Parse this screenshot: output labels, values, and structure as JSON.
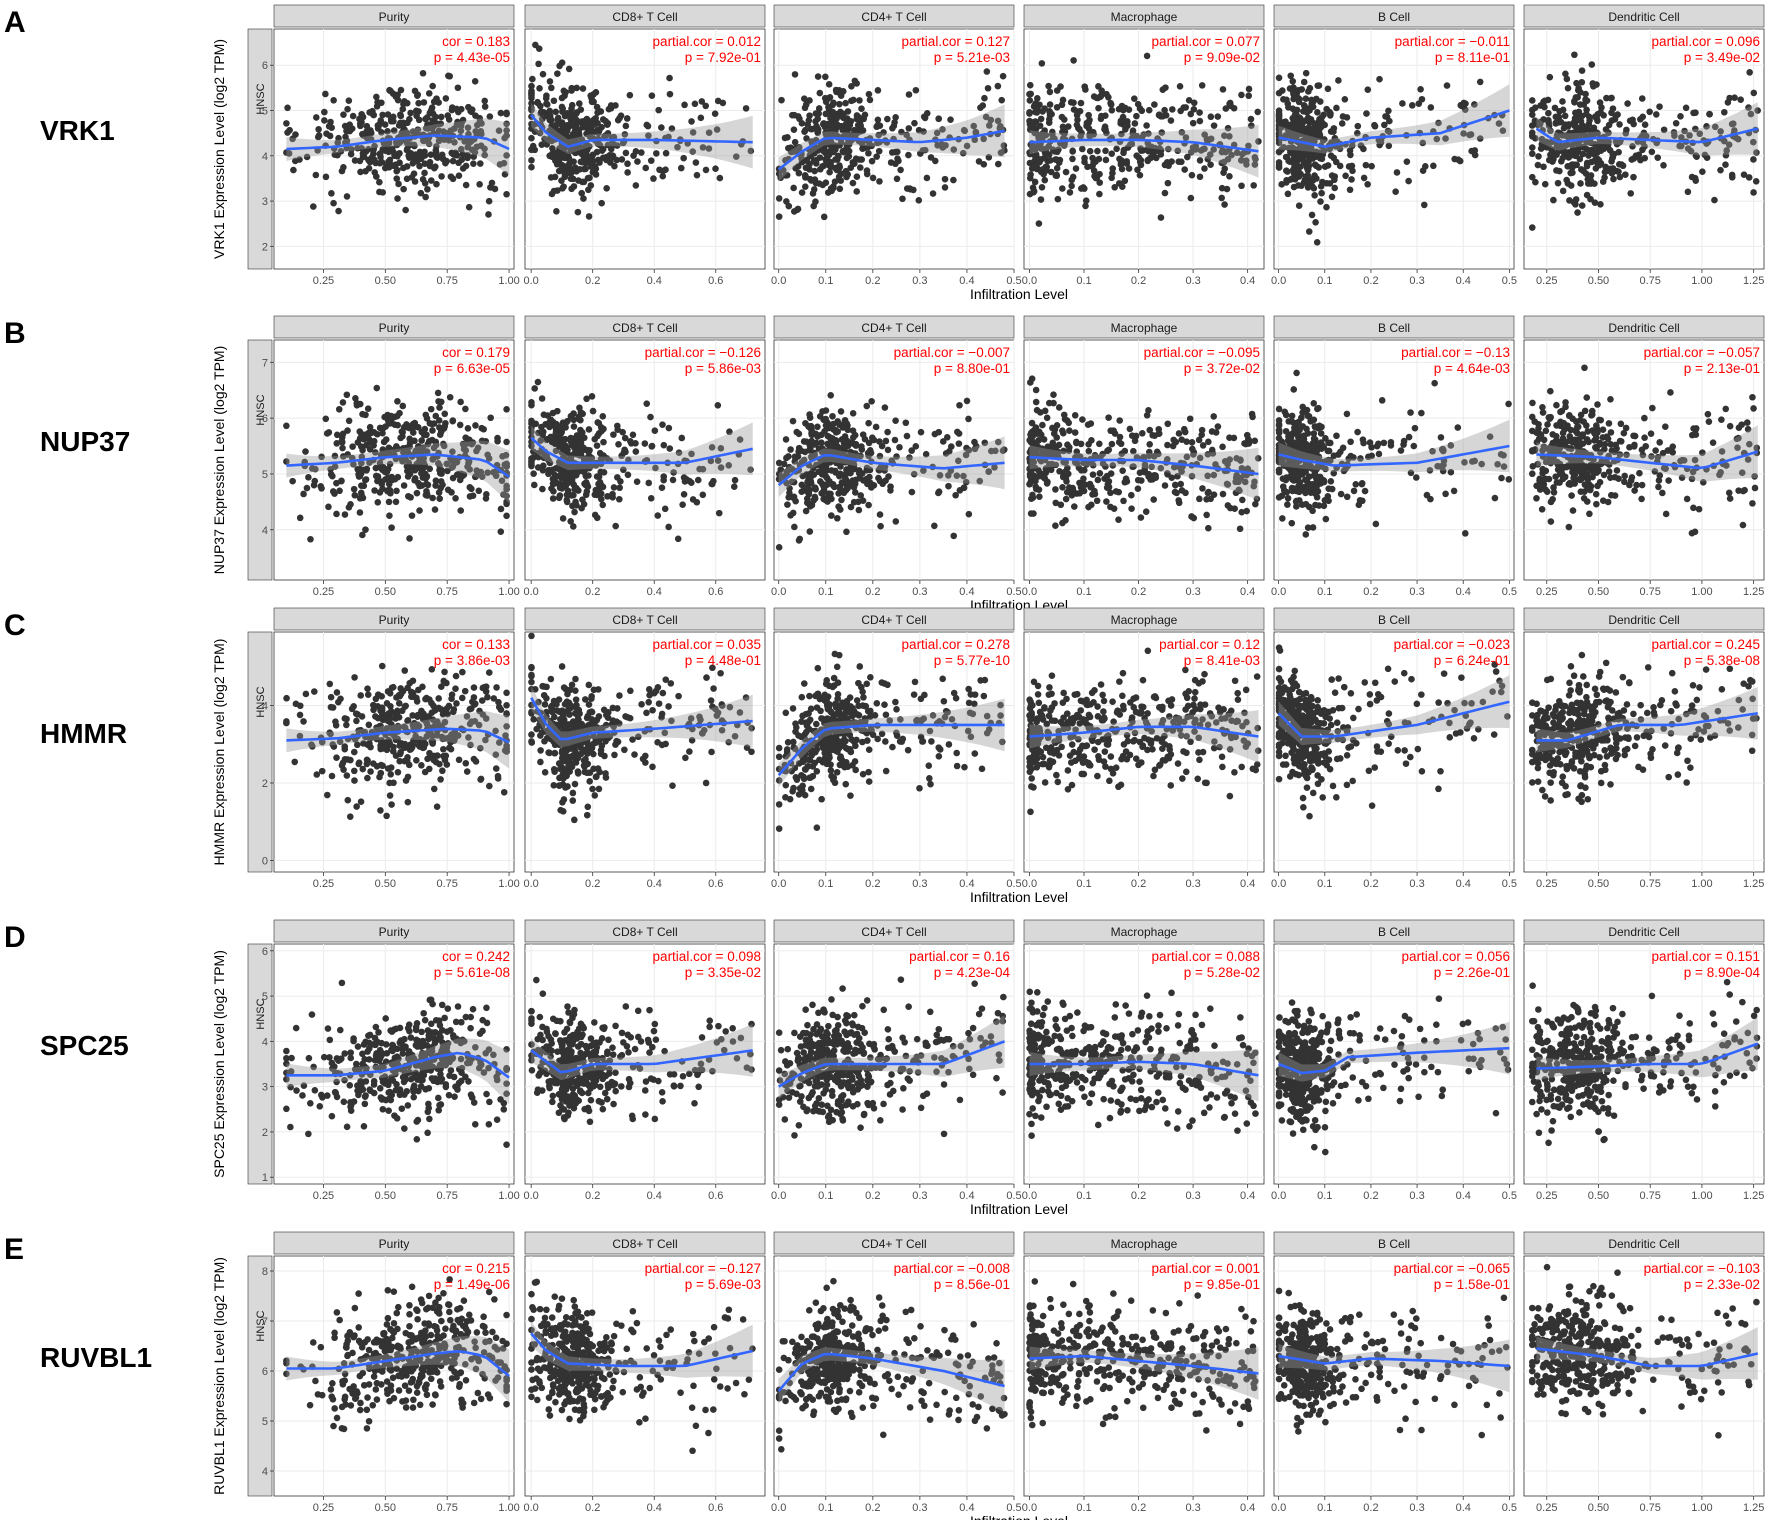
{
  "figure": {
    "rows": [
      {
        "letter": "A",
        "gene": "VRK1",
        "ylabel": "VRK1 Expression Level (log2 TPM)",
        "cancer": "HNSC",
        "xlabel": "Infiltration Level",
        "ylim": [
          1.5,
          6.8
        ],
        "yticks": [
          2,
          3,
          4,
          5,
          6
        ],
        "panels": [
          {
            "name": "Purity",
            "stat1": "cor = 0.183",
            "stat2": "p = 4.43e-05"
          },
          {
            "name": "CD8+ T Cell",
            "stat1": "partial.cor = 0.012",
            "stat2": "p = 7.92e-01"
          },
          {
            "name": "CD4+ T Cell",
            "stat1": "partial.cor = 0.127",
            "stat2": "p = 5.21e-03"
          },
          {
            "name": "Macrophage",
            "stat1": "partial.cor = 0.077",
            "stat2": "p = 9.09e-02"
          },
          {
            "name": "B Cell",
            "stat1": "partial.cor = −0.011",
            "stat2": "p = 8.11e-01"
          },
          {
            "name": "Dendritic Cell",
            "stat1": "partial.cor = 0.096",
            "stat2": "p = 3.49e-02"
          }
        ]
      },
      {
        "letter": "B",
        "gene": "NUP37",
        "ylabel": "NUP37 Expression Level (log2 TPM)",
        "cancer": "HNSC",
        "xlabel": "Infiltration Level",
        "ylim": [
          3.1,
          7.4
        ],
        "yticks": [
          4,
          5,
          6,
          7
        ],
        "panels": [
          {
            "name": "Purity",
            "stat1": "cor = 0.179",
            "stat2": "p = 6.63e-05"
          },
          {
            "name": "CD8+ T Cell",
            "stat1": "partial.cor = −0.126",
            "stat2": "p = 5.86e-03"
          },
          {
            "name": "CD4+ T Cell",
            "stat1": "partial.cor = −0.007",
            "stat2": "p = 8.80e-01"
          },
          {
            "name": "Macrophage",
            "stat1": "partial.cor = −0.095",
            "stat2": "p = 3.72e-02"
          },
          {
            "name": "B Cell",
            "stat1": "partial.cor = −0.13",
            "stat2": "p = 4.64e-03"
          },
          {
            "name": "Dendritic Cell",
            "stat1": "partial.cor = −0.057",
            "stat2": "p = 2.13e-01"
          }
        ]
      },
      {
        "letter": "C",
        "gene": "HMMR",
        "ylabel": "HMMR Expression Level (log2 TPM)",
        "cancer": "HNSC",
        "xlabel": "Infiltration Level",
        "ylim": [
          -0.3,
          5.9
        ],
        "yticks": [
          0,
          2,
          4
        ],
        "panels": [
          {
            "name": "Purity",
            "stat1": "cor = 0.133",
            "stat2": "p = 3.86e-03"
          },
          {
            "name": "CD8+ T Cell",
            "stat1": "partial.cor = 0.035",
            "stat2": "p = 4.48e-01"
          },
          {
            "name": "CD4+ T Cell",
            "stat1": "partial.cor = 0.278",
            "stat2": "p = 5.77e-10"
          },
          {
            "name": "Macrophage",
            "stat1": "partial.cor = 0.12",
            "stat2": "p = 8.41e-03"
          },
          {
            "name": "B Cell",
            "stat1": "partial.cor = −0.023",
            "stat2": "p = 6.24e-01"
          },
          {
            "name": "Dendritic Cell",
            "stat1": "partial.cor = 0.245",
            "stat2": "p = 5.38e-08"
          }
        ]
      },
      {
        "letter": "D",
        "gene": "SPC25",
        "ylabel": "SPC25 Expression Level (log2 TPM)",
        "cancer": "HNSC",
        "xlabel": "Infiltration Level",
        "ylim": [
          0.85,
          6.15
        ],
        "yticks": [
          1,
          2,
          3,
          4,
          5,
          6
        ],
        "panels": [
          {
            "name": "Purity",
            "stat1": "cor = 0.242",
            "stat2": "p = 5.61e-08"
          },
          {
            "name": "CD8+ T Cell",
            "stat1": "partial.cor = 0.098",
            "stat2": "p = 3.35e-02"
          },
          {
            "name": "CD4+ T Cell",
            "stat1": "partial.cor = 0.16",
            "stat2": "p = 4.23e-04"
          },
          {
            "name": "Macrophage",
            "stat1": "partial.cor = 0.088",
            "stat2": "p = 5.28e-02"
          },
          {
            "name": "B Cell",
            "stat1": "partial.cor = 0.056",
            "stat2": "p = 2.26e-01"
          },
          {
            "name": "Dendritic Cell",
            "stat1": "partial.cor = 0.151",
            "stat2": "p = 8.90e-04"
          }
        ]
      },
      {
        "letter": "E",
        "gene": "RUVBL1",
        "ylabel": "RUVBL1 Expression Level (log2 TPM)",
        "cancer": "HNSC",
        "xlabel": "Infiltration Level",
        "ylim": [
          3.5,
          8.3
        ],
        "yticks": [
          4,
          5,
          6,
          7,
          8
        ],
        "panels": [
          {
            "name": "Purity",
            "stat1": "cor = 0.215",
            "stat2": "p = 1.49e-06"
          },
          {
            "name": "CD8+ T Cell",
            "stat1": "partial.cor = −0.127",
            "stat2": "p = 5.69e-03"
          },
          {
            "name": "CD4+ T Cell",
            "stat1": "partial.cor = −0.008",
            "stat2": "p = 8.56e-01"
          },
          {
            "name": "Macrophage",
            "stat1": "partial.cor = 0.001",
            "stat2": "p = 9.85e-01"
          },
          {
            "name": "B Cell",
            "stat1": "partial.cor = −0.065",
            "stat2": "p = 1.58e-01"
          },
          {
            "name": "Dendritic Cell",
            "stat1": "partial.cor = −0.103",
            "stat2": "p = 2.33e-02"
          }
        ]
      }
    ],
    "x_axes": [
      {
        "xlim": [
          0.05,
          1.02
        ],
        "ticks": [
          0.25,
          0.5,
          0.75,
          1.0
        ],
        "labels": [
          "0.25",
          "0.50",
          "0.75",
          "1.00"
        ]
      },
      {
        "xlim": [
          -0.02,
          0.76
        ],
        "ticks": [
          0.0,
          0.2,
          0.4,
          0.6
        ],
        "labels": [
          "0.0",
          "0.2",
          "0.4",
          "0.6"
        ]
      },
      {
        "xlim": [
          -0.01,
          0.5
        ],
        "ticks": [
          0.0,
          0.1,
          0.2,
          0.3,
          0.4,
          0.5
        ],
        "labels": [
          "0.0",
          "0.1",
          "0.2",
          "0.3",
          "0.4",
          "0.5"
        ]
      },
      {
        "xlim": [
          -0.01,
          0.43
        ],
        "ticks": [
          0.0,
          0.1,
          0.2,
          0.3,
          0.4
        ],
        "labels": [
          "0.0",
          "0.1",
          "0.2",
          "0.3",
          "0.4"
        ]
      },
      {
        "xlim": [
          -0.01,
          0.51
        ],
        "ticks": [
          0.0,
          0.1,
          0.2,
          0.3,
          0.4,
          0.5
        ],
        "labels": [
          "0.0",
          "0.1",
          "0.2",
          "0.3",
          "0.4",
          "0.5"
        ]
      },
      {
        "xlim": [
          0.14,
          1.3
        ],
        "ticks": [
          0.25,
          0.5,
          0.75,
          1.0,
          1.25
        ],
        "labels": [
          "0.25",
          "0.50",
          "0.75",
          "1.00",
          "1.25"
        ]
      }
    ]
  },
  "chart_data": {
    "type": "scatter",
    "description_of_series": "HNSC gene expression (log2 TPM) vs. tumor purity / immune infiltration levels, with loess fit",
    "x_variables": [
      "Purity",
      "CD8+ T Cell",
      "CD4+ T Cell",
      "Macrophage",
      "B Cell",
      "Dendritic Cell"
    ],
    "genes": [
      "VRK1",
      "NUP37",
      "HMMR",
      "SPC25",
      "RUVBL1"
    ],
    "fit_color": "#3366ff",
    "point_color": "#333333",
    "annotation_color": "#ff0000",
    "loess_fits": {
      "VRK1": [
        [
          [
            0.1,
            4.15
          ],
          [
            0.3,
            4.2
          ],
          [
            0.5,
            4.35
          ],
          [
            0.7,
            4.45
          ],
          [
            0.9,
            4.4
          ],
          [
            1.0,
            4.15
          ]
        ],
        [
          [
            0.0,
            4.9
          ],
          [
            0.05,
            4.5
          ],
          [
            0.12,
            4.2
          ],
          [
            0.2,
            4.35
          ],
          [
            0.4,
            4.35
          ],
          [
            0.72,
            4.3
          ]
        ],
        [
          [
            0.0,
            3.7
          ],
          [
            0.05,
            4.1
          ],
          [
            0.1,
            4.4
          ],
          [
            0.2,
            4.35
          ],
          [
            0.3,
            4.3
          ],
          [
            0.4,
            4.4
          ],
          [
            0.48,
            4.55
          ]
        ],
        [
          [
            0.0,
            4.3
          ],
          [
            0.1,
            4.35
          ],
          [
            0.2,
            4.35
          ],
          [
            0.3,
            4.3
          ],
          [
            0.42,
            4.1
          ]
        ],
        [
          [
            0.0,
            4.4
          ],
          [
            0.1,
            4.2
          ],
          [
            0.2,
            4.4
          ],
          [
            0.35,
            4.5
          ],
          [
            0.5,
            5.0
          ]
        ],
        [
          [
            0.2,
            4.6
          ],
          [
            0.3,
            4.3
          ],
          [
            0.5,
            4.4
          ],
          [
            0.75,
            4.35
          ],
          [
            1.0,
            4.3
          ],
          [
            1.27,
            4.6
          ]
        ]
      ],
      "NUP37": [
        [
          [
            0.1,
            5.15
          ],
          [
            0.3,
            5.2
          ],
          [
            0.5,
            5.3
          ],
          [
            0.7,
            5.35
          ],
          [
            0.9,
            5.25
          ],
          [
            1.0,
            4.95
          ]
        ],
        [
          [
            0.0,
            5.65
          ],
          [
            0.05,
            5.4
          ],
          [
            0.12,
            5.2
          ],
          [
            0.3,
            5.2
          ],
          [
            0.5,
            5.2
          ],
          [
            0.72,
            5.45
          ]
        ],
        [
          [
            0.0,
            4.8
          ],
          [
            0.05,
            5.15
          ],
          [
            0.1,
            5.35
          ],
          [
            0.2,
            5.2
          ],
          [
            0.35,
            5.1
          ],
          [
            0.48,
            5.2
          ]
        ],
        [
          [
            0.0,
            5.3
          ],
          [
            0.1,
            5.25
          ],
          [
            0.2,
            5.25
          ],
          [
            0.3,
            5.15
          ],
          [
            0.42,
            5.0
          ]
        ],
        [
          [
            0.0,
            5.35
          ],
          [
            0.05,
            5.25
          ],
          [
            0.12,
            5.15
          ],
          [
            0.3,
            5.2
          ],
          [
            0.5,
            5.5
          ]
        ],
        [
          [
            0.2,
            5.35
          ],
          [
            0.5,
            5.3
          ],
          [
            0.75,
            5.2
          ],
          [
            1.0,
            5.1
          ],
          [
            1.27,
            5.4
          ]
        ]
      ],
      "HMMR": [
        [
          [
            0.1,
            3.1
          ],
          [
            0.3,
            3.15
          ],
          [
            0.5,
            3.3
          ],
          [
            0.75,
            3.4
          ],
          [
            0.9,
            3.35
          ],
          [
            1.0,
            3.05
          ]
        ],
        [
          [
            0.0,
            4.2
          ],
          [
            0.05,
            3.5
          ],
          [
            0.1,
            3.1
          ],
          [
            0.2,
            3.3
          ],
          [
            0.4,
            3.4
          ],
          [
            0.72,
            3.6
          ]
        ],
        [
          [
            0.0,
            2.2
          ],
          [
            0.05,
            2.9
          ],
          [
            0.1,
            3.4
          ],
          [
            0.2,
            3.5
          ],
          [
            0.35,
            3.5
          ],
          [
            0.48,
            3.5
          ]
        ],
        [
          [
            0.0,
            3.2
          ],
          [
            0.1,
            3.3
          ],
          [
            0.2,
            3.45
          ],
          [
            0.3,
            3.45
          ],
          [
            0.42,
            3.2
          ]
        ],
        [
          [
            0.0,
            3.8
          ],
          [
            0.05,
            3.2
          ],
          [
            0.12,
            3.2
          ],
          [
            0.3,
            3.5
          ],
          [
            0.5,
            4.1
          ]
        ],
        [
          [
            0.2,
            3.1
          ],
          [
            0.35,
            3.1
          ],
          [
            0.6,
            3.5
          ],
          [
            0.9,
            3.5
          ],
          [
            1.27,
            3.8
          ]
        ]
      ],
      "SPC25": [
        [
          [
            0.1,
            3.25
          ],
          [
            0.3,
            3.25
          ],
          [
            0.5,
            3.35
          ],
          [
            0.7,
            3.65
          ],
          [
            0.8,
            3.75
          ],
          [
            0.9,
            3.6
          ],
          [
            1.0,
            3.2
          ]
        ],
        [
          [
            0.0,
            3.8
          ],
          [
            0.05,
            3.55
          ],
          [
            0.1,
            3.3
          ],
          [
            0.2,
            3.5
          ],
          [
            0.4,
            3.5
          ],
          [
            0.72,
            3.8
          ]
        ],
        [
          [
            0.0,
            3.0
          ],
          [
            0.05,
            3.3
          ],
          [
            0.1,
            3.5
          ],
          [
            0.2,
            3.5
          ],
          [
            0.35,
            3.5
          ],
          [
            0.48,
            4.0
          ]
        ],
        [
          [
            0.0,
            3.5
          ],
          [
            0.1,
            3.5
          ],
          [
            0.2,
            3.55
          ],
          [
            0.3,
            3.5
          ],
          [
            0.42,
            3.25
          ]
        ],
        [
          [
            0.0,
            3.5
          ],
          [
            0.05,
            3.3
          ],
          [
            0.1,
            3.35
          ],
          [
            0.15,
            3.65
          ],
          [
            0.3,
            3.75
          ],
          [
            0.5,
            3.85
          ]
        ],
        [
          [
            0.2,
            3.4
          ],
          [
            0.5,
            3.45
          ],
          [
            0.75,
            3.5
          ],
          [
            1.0,
            3.5
          ],
          [
            1.27,
            3.95
          ]
        ]
      ],
      "RUVBL1": [
        [
          [
            0.1,
            6.05
          ],
          [
            0.3,
            6.05
          ],
          [
            0.5,
            6.2
          ],
          [
            0.7,
            6.35
          ],
          [
            0.8,
            6.4
          ],
          [
            0.9,
            6.3
          ],
          [
            1.0,
            5.9
          ]
        ],
        [
          [
            0.0,
            6.75
          ],
          [
            0.05,
            6.4
          ],
          [
            0.12,
            6.15
          ],
          [
            0.3,
            6.1
          ],
          [
            0.5,
            6.1
          ],
          [
            0.72,
            6.4
          ]
        ],
        [
          [
            0.0,
            5.6
          ],
          [
            0.05,
            6.15
          ],
          [
            0.1,
            6.35
          ],
          [
            0.2,
            6.25
          ],
          [
            0.35,
            6.0
          ],
          [
            0.48,
            5.7
          ]
        ],
        [
          [
            0.0,
            6.25
          ],
          [
            0.1,
            6.3
          ],
          [
            0.2,
            6.2
          ],
          [
            0.3,
            6.1
          ],
          [
            0.42,
            5.95
          ]
        ],
        [
          [
            0.0,
            6.3
          ],
          [
            0.1,
            6.15
          ],
          [
            0.2,
            6.25
          ],
          [
            0.35,
            6.2
          ],
          [
            0.5,
            6.1
          ]
        ],
        [
          [
            0.2,
            6.45
          ],
          [
            0.5,
            6.3
          ],
          [
            0.75,
            6.1
          ],
          [
            1.0,
            6.1
          ],
          [
            1.27,
            6.35
          ]
        ]
      ]
    }
  }
}
